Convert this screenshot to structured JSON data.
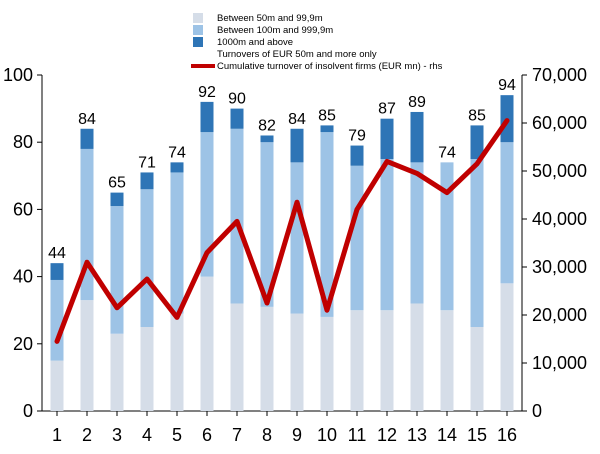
{
  "chart_data": {
    "type": "bar",
    "stacked": true,
    "categories": [
      "1",
      "2",
      "3",
      "4",
      "5",
      "6",
      "7",
      "8",
      "9",
      "10",
      "11",
      "12",
      "13",
      "14",
      "15",
      "16"
    ],
    "series": [
      {
        "name": "Between 50m and 99,9m",
        "color": "#d5dde8",
        "values": [
          15,
          33,
          23,
          25,
          29,
          40,
          32,
          31,
          29,
          28,
          30,
          30,
          32,
          30,
          25,
          38
        ]
      },
      {
        "name": "Between 100m and 999,9m",
        "color": "#9dc3e6",
        "values": [
          24,
          45,
          38,
          41,
          42,
          43,
          52,
          49,
          45,
          55,
          43,
          45,
          42,
          44,
          50,
          42
        ]
      },
      {
        "name": "1000m and above",
        "color": "#2e75b6",
        "values": [
          5,
          6,
          4,
          5,
          3,
          9,
          6,
          2,
          10,
          2,
          6,
          12,
          15,
          0,
          10,
          14
        ]
      }
    ],
    "totals": [
      44,
      84,
      65,
      71,
      74,
      92,
      90,
      82,
      84,
      85,
      79,
      87,
      89,
      74,
      85,
      94
    ],
    "line": {
      "name": "Cumulative turnover of insolvent firms (EUR mn) - rhs",
      "color": "#c00000",
      "axis": "right",
      "values": [
        14500,
        31000,
        21500,
        27500,
        19500,
        33000,
        39500,
        22500,
        43500,
        21000,
        42000,
        52000,
        49500,
        45500,
        51500,
        60500
      ]
    },
    "legend_extra": "Turnovers of EUR 50m and more only",
    "ylim": [
      0,
      100
    ],
    "yticks": [
      "0",
      "20",
      "40",
      "60",
      "80",
      "100"
    ],
    "y2lim": [
      0,
      70000
    ],
    "y2ticks": [
      "0",
      "10,000",
      "20,000",
      "30,000",
      "40,000",
      "50,000",
      "60,000",
      "70,000"
    ],
    "legend_position": "top-center",
    "grid": false
  }
}
